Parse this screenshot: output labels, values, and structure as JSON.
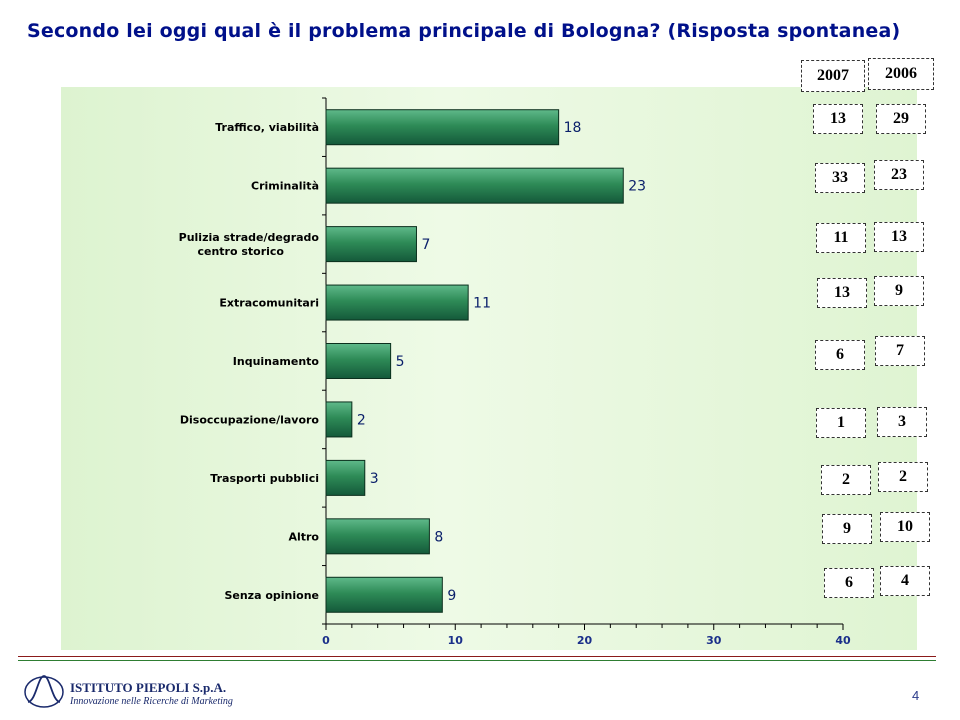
{
  "title": "Secondo lei oggi qual è il problema principale di Bologna? (Risposta spontanea)",
  "chart_data": {
    "type": "bar",
    "orientation": "horizontal",
    "categories": [
      "Traffico, viabilità",
      "Criminalità",
      "Pulizia strade/degrado centro storico",
      "Extracomunitari",
      "Inquinamento",
      "Disoccupazione/lavoro",
      "Trasporti pubblici",
      "Altro",
      "Senza opinione"
    ],
    "values": [
      18,
      23,
      7,
      11,
      5,
      2,
      3,
      8,
      9
    ],
    "xlim": [
      0,
      40
    ],
    "xticks": [
      "0",
      "10",
      "20",
      "30",
      "40"
    ],
    "bar_color": "#2e8b57",
    "background_color": "#e2f5d6",
    "grid": false
  },
  "comparison": {
    "headers": [
      "2007",
      "2006"
    ],
    "values_2007": [
      "13",
      "33",
      "11",
      "13",
      "6",
      "1",
      "2",
      "9",
      "6"
    ],
    "values_2006": [
      "29",
      "23",
      "13",
      "9",
      "7",
      "3",
      "2",
      "10",
      "4"
    ]
  },
  "footer": {
    "company": "ISTITUTO PIEPOLI S.p.A.",
    "tagline": "Innovazione nelle Ricerche di Marketing",
    "page_number": "4"
  },
  "colors": {
    "title": "#00108a",
    "value_labels": "#0a1f6a"
  }
}
